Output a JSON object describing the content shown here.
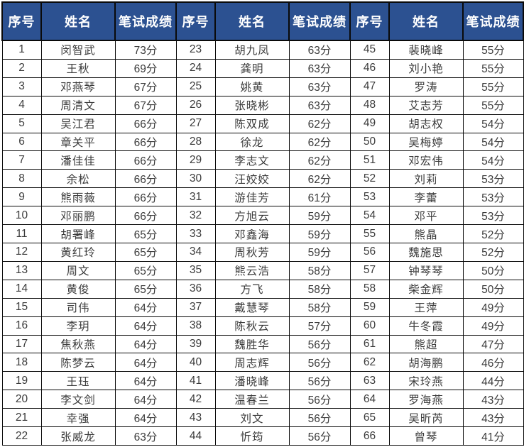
{
  "colors": {
    "header_bg": "#2c5191",
    "header_text": "#ffffff",
    "body_text": "#3b3b3b",
    "border": "#0a0a0a"
  },
  "header": {
    "col_seq": "序号",
    "col_name": "姓名",
    "col_score": "笔试成绩"
  },
  "groups": [
    {
      "rows": [
        {
          "seq": "1",
          "name": "闵智武",
          "score": "73分"
        },
        {
          "seq": "2",
          "name": "王秋",
          "score": "69分"
        },
        {
          "seq": "3",
          "name": "邓燕琴",
          "score": "67分"
        },
        {
          "seq": "4",
          "name": "周清文",
          "score": "67分"
        },
        {
          "seq": "5",
          "name": "吴江君",
          "score": "66分"
        },
        {
          "seq": "6",
          "name": "章关平",
          "score": "66分"
        },
        {
          "seq": "7",
          "name": "潘佳佳",
          "score": "66分"
        },
        {
          "seq": "8",
          "name": "余松",
          "score": "66分"
        },
        {
          "seq": "9",
          "name": "熊雨薇",
          "score": "66分"
        },
        {
          "seq": "10",
          "name": "邓丽鹏",
          "score": "66分"
        },
        {
          "seq": "11",
          "name": "胡署峰",
          "score": "65分"
        },
        {
          "seq": "12",
          "name": "黄红玲",
          "score": "65分"
        },
        {
          "seq": "13",
          "name": "周文",
          "score": "65分"
        },
        {
          "seq": "14",
          "name": "黄俊",
          "score": "65分"
        },
        {
          "seq": "15",
          "name": "司伟",
          "score": "64分"
        },
        {
          "seq": "16",
          "name": "李玥",
          "score": "64分"
        },
        {
          "seq": "17",
          "name": "焦秋燕",
          "score": "64分"
        },
        {
          "seq": "18",
          "name": "陈梦云",
          "score": "64分"
        },
        {
          "seq": "19",
          "name": "王珏",
          "score": "64分"
        },
        {
          "seq": "20",
          "name": "李文剑",
          "score": "64分"
        },
        {
          "seq": "21",
          "name": "幸强",
          "score": "64分"
        },
        {
          "seq": "22",
          "name": "张威龙",
          "score": "63分"
        }
      ]
    },
    {
      "rows": [
        {
          "seq": "23",
          "name": "胡九凤",
          "score": "63分"
        },
        {
          "seq": "24",
          "name": "龚明",
          "score": "63分"
        },
        {
          "seq": "25",
          "name": "姚黄",
          "score": "63分"
        },
        {
          "seq": "26",
          "name": "张晓彬",
          "score": "63分"
        },
        {
          "seq": "27",
          "name": "陈双成",
          "score": "62分"
        },
        {
          "seq": "28",
          "name": "徐龙",
          "score": "62分"
        },
        {
          "seq": "29",
          "name": "李志文",
          "score": "62分"
        },
        {
          "seq": "30",
          "name": "汪姣姣",
          "score": "62分"
        },
        {
          "seq": "31",
          "name": "游佳芳",
          "score": "61分"
        },
        {
          "seq": "32",
          "name": "方旭云",
          "score": "59分"
        },
        {
          "seq": "33",
          "name": "邓鑫海",
          "score": "59分"
        },
        {
          "seq": "34",
          "name": "周秋芳",
          "score": "59分"
        },
        {
          "seq": "35",
          "name": "熊云浩",
          "score": "58分"
        },
        {
          "seq": "36",
          "name": "方飞",
          "score": "58分"
        },
        {
          "seq": "37",
          "name": "戴慧琴",
          "score": "58分"
        },
        {
          "seq": "38",
          "name": "陈秋云",
          "score": "57分"
        },
        {
          "seq": "39",
          "name": "魏胜华",
          "score": "56分"
        },
        {
          "seq": "40",
          "name": "周志辉",
          "score": "56分"
        },
        {
          "seq": "41",
          "name": "潘晓峰",
          "score": "56分"
        },
        {
          "seq": "42",
          "name": "温春兰",
          "score": "56分"
        },
        {
          "seq": "43",
          "name": "刘文",
          "score": "56分"
        },
        {
          "seq": "44",
          "name": "忻筠",
          "score": "56分"
        }
      ]
    },
    {
      "rows": [
        {
          "seq": "45",
          "name": "裴晓峰",
          "score": "55分"
        },
        {
          "seq": "46",
          "name": "刘小艳",
          "score": "55分"
        },
        {
          "seq": "47",
          "name": "罗涛",
          "score": "55分"
        },
        {
          "seq": "48",
          "name": "艾志芳",
          "score": "55分"
        },
        {
          "seq": "49",
          "name": "胡志权",
          "score": "54分"
        },
        {
          "seq": "50",
          "name": "吴梅婷",
          "score": "54分"
        },
        {
          "seq": "51",
          "name": "邓宏伟",
          "score": "54分"
        },
        {
          "seq": "52",
          "name": "刘莉",
          "score": "53分"
        },
        {
          "seq": "53",
          "name": "李蕾",
          "score": "53分"
        },
        {
          "seq": "54",
          "name": "邓平",
          "score": "53分"
        },
        {
          "seq": "55",
          "name": "熊晶",
          "score": "52分"
        },
        {
          "seq": "56",
          "name": "魏施思",
          "score": "52分"
        },
        {
          "seq": "57",
          "name": "钟琴琴",
          "score": "50分"
        },
        {
          "seq": "58",
          "name": "柴金辉",
          "score": "50分"
        },
        {
          "seq": "59",
          "name": "王萍",
          "score": "49分"
        },
        {
          "seq": "60",
          "name": "牛冬霞",
          "score": "49分"
        },
        {
          "seq": "61",
          "name": "熊超",
          "score": "47分"
        },
        {
          "seq": "62",
          "name": "胡海鹏",
          "score": "46分"
        },
        {
          "seq": "63",
          "name": "宋玲燕",
          "score": "44分"
        },
        {
          "seq": "64",
          "name": "罗海燕",
          "score": "43分"
        },
        {
          "seq": "65",
          "name": "吴昕芮",
          "score": "43分"
        },
        {
          "seq": "66",
          "name": "曾琴",
          "score": "41分"
        }
      ]
    }
  ]
}
